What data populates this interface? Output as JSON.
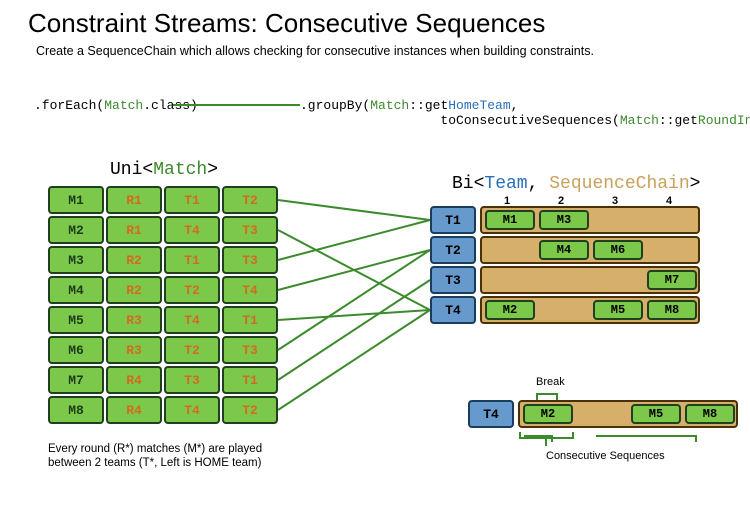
{
  "title": "Constraint Streams: Consecutive Sequences",
  "subtitle": "Create a SequenceChain which allows checking for consecutive instances when building constraints.",
  "code": {
    "left_pre": ".forEach(",
    "left_cls": "Match",
    "left_post": ".class)",
    "right_pre": ".groupBy(",
    "right_cls": "Match",
    "right_sep": "::get",
    "right_home": "HomeTeam",
    "right_comma": ",",
    "right2_pre": "                  toConsecutiveSequences(",
    "right2_cls": "Match",
    "right2_sep": "::get",
    "right2_idx": "RoundIndex",
    "right2_post": "))"
  },
  "left_section": {
    "pre": "Uni<",
    "cls": "Match",
    "post": ">"
  },
  "right_section": {
    "pre": "Bi<",
    "team": "Team",
    "sep": ", ",
    "chain": "SequenceChain",
    "post": ">"
  },
  "col_heads": [
    "1",
    "2",
    "3",
    "4"
  ],
  "left_rows": [
    {
      "m": "M1",
      "r": "R1",
      "t1": "T1",
      "t2": "T2"
    },
    {
      "m": "M2",
      "r": "R1",
      "t1": "T4",
      "t2": "T3"
    },
    {
      "m": "M3",
      "r": "R2",
      "t1": "T1",
      "t2": "T3"
    },
    {
      "m": "M4",
      "r": "R2",
      "t1": "T2",
      "t2": "T4"
    },
    {
      "m": "M5",
      "r": "R3",
      "t1": "T4",
      "t2": "T1"
    },
    {
      "m": "M6",
      "r": "R3",
      "t1": "T2",
      "t2": "T3"
    },
    {
      "m": "M7",
      "r": "R4",
      "t1": "T3",
      "t2": "T1"
    },
    {
      "m": "M8",
      "r": "R4",
      "t1": "T4",
      "t2": "T2"
    }
  ],
  "right_rows": [
    {
      "team": "T1",
      "slots": {
        "1": "M1",
        "2": "M3"
      }
    },
    {
      "team": "T2",
      "slots": {
        "2": "M4",
        "3": "M6"
      }
    },
    {
      "team": "T3",
      "slots": {
        "4": "M7"
      }
    },
    {
      "team": "T4",
      "slots": {
        "1": "M2",
        "3": "M5",
        "4": "M8"
      }
    }
  ],
  "detail_row": {
    "team": "T4",
    "slots": {
      "1": "M2",
      "3": "M5",
      "4": "M8"
    }
  },
  "labels": {
    "break": "Break",
    "cs": "Consecutive Sequences"
  },
  "footnote": "Every round (R*) matches (M*) are played\nbetween 2 teams (T*, Left is HOME team)",
  "colors": {
    "green_fill": "#7cc84a",
    "green_border": "#1f3f1f",
    "blue_fill": "#6699cc",
    "blue_border": "#1a3c5e",
    "tan_fill": "#d6b06a",
    "tan_border": "#4a3105",
    "line": "#3b8a2c",
    "text_green": "#3b8a2c",
    "text_blue": "#2a6fbb",
    "text_tan": "#c9a15a",
    "text_orange": "#d36b1f"
  }
}
